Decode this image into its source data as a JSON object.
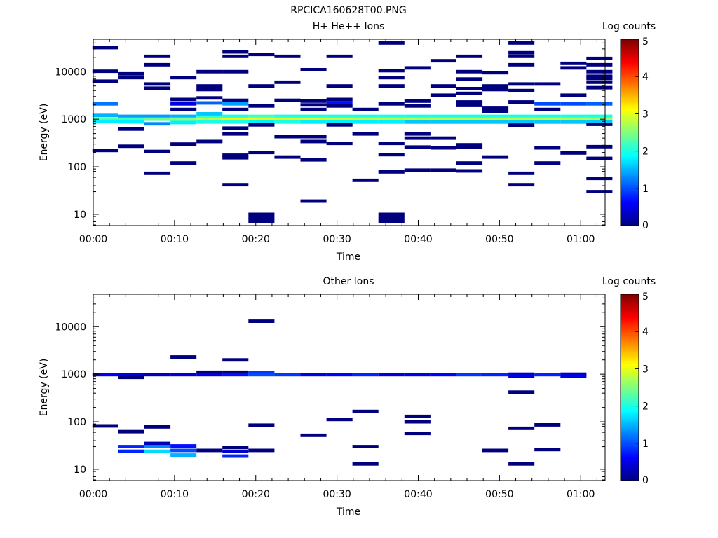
{
  "figure_title": "RPCICA160628T00.PNG",
  "colormap": [
    "#00007f",
    "#0000ff",
    "#007fff",
    "#00ffff",
    "#7fff7f",
    "#ffff00",
    "#ff7f00",
    "#ff0000",
    "#7f0000"
  ],
  "chart_data": [
    {
      "type": "heatmap",
      "title": "H+ He++ Ions",
      "xlabel": "Time",
      "ylabel": "Energy (eV)",
      "colorbar_label": "Log counts",
      "colorbar_ticks": [
        "0",
        "1",
        "2",
        "3",
        "4",
        "5"
      ],
      "x_ticks": [
        "00:00",
        "00:10",
        "00:20",
        "00:30",
        "00:40",
        "00:50",
        "01:00"
      ],
      "y_ticks": [
        "10",
        "100",
        "1000",
        "10000"
      ],
      "xlim_minutes": [
        0,
        63
      ],
      "ylim_ev": [
        5.8,
        48000
      ],
      "y_scale": "log",
      "col_width_minutes": 3.2,
      "bins": [
        [
          1.5,
          32000,
          0
        ],
        [
          1.5,
          10200,
          0
        ],
        [
          1.5,
          6300,
          0
        ],
        [
          1.5,
          2100,
          1.2
        ],
        [
          1.5,
          1200,
          1.5
        ],
        [
          1.5,
          1000,
          2.3
        ],
        [
          1.5,
          900,
          1.8
        ],
        [
          1.5,
          220,
          0
        ],
        [
          4.7,
          9000,
          0
        ],
        [
          4.7,
          7500,
          0
        ],
        [
          4.7,
          1150,
          1.4
        ],
        [
          4.7,
          1000,
          2.2
        ],
        [
          4.7,
          880,
          1.8
        ],
        [
          4.7,
          620,
          0
        ],
        [
          4.7,
          270,
          0
        ],
        [
          7.9,
          21000,
          0
        ],
        [
          7.9,
          14000,
          0
        ],
        [
          7.9,
          5500,
          0
        ],
        [
          7.9,
          4500,
          0
        ],
        [
          7.9,
          1150,
          1.4
        ],
        [
          7.9,
          1000,
          2.4
        ],
        [
          7.9,
          800,
          1.3
        ],
        [
          7.9,
          210,
          0
        ],
        [
          7.9,
          73,
          0
        ],
        [
          11.1,
          7500,
          0
        ],
        [
          11.1,
          2600,
          0
        ],
        [
          11.1,
          2100,
          0.5
        ],
        [
          11.1,
          1600,
          0
        ],
        [
          11.1,
          1150,
          1.5
        ],
        [
          11.1,
          1000,
          2.5
        ],
        [
          11.1,
          850,
          1.8
        ],
        [
          11.1,
          300,
          0
        ],
        [
          11.1,
          120,
          0
        ],
        [
          14.3,
          10000,
          0
        ],
        [
          14.3,
          5000,
          0
        ],
        [
          14.3,
          4200,
          0
        ],
        [
          14.3,
          2800,
          0
        ],
        [
          14.3,
          2200,
          1.1
        ],
        [
          14.3,
          1300,
          1.6
        ],
        [
          14.3,
          1100,
          2.1
        ],
        [
          14.3,
          1000,
          2.8
        ],
        [
          14.3,
          870,
          2.0
        ],
        [
          14.3,
          340,
          0
        ],
        [
          17.5,
          26000,
          0
        ],
        [
          17.5,
          21000,
          0
        ],
        [
          17.5,
          10000,
          0
        ],
        [
          17.5,
          2500,
          0
        ],
        [
          17.5,
          2100,
          1.4
        ],
        [
          17.5,
          1600,
          0
        ],
        [
          17.5,
          1150,
          2.0
        ],
        [
          17.5,
          1000,
          3.2
        ],
        [
          17.5,
          870,
          2.0
        ],
        [
          17.5,
          650,
          0
        ],
        [
          17.5,
          490,
          0
        ],
        [
          17.5,
          175,
          0
        ],
        [
          17.5,
          155,
          0
        ],
        [
          17.5,
          42,
          0
        ],
        [
          20.7,
          23000,
          0
        ],
        [
          20.7,
          5000,
          0
        ],
        [
          20.7,
          1900,
          0
        ],
        [
          20.7,
          1150,
          2.2
        ],
        [
          20.7,
          1000,
          3.0
        ],
        [
          20.7,
          870,
          1.8
        ],
        [
          20.7,
          760,
          0
        ],
        [
          20.7,
          200,
          0
        ],
        [
          20.7,
          8.5,
          0
        ],
        [
          23.9,
          21000,
          0
        ],
        [
          23.9,
          6000,
          0
        ],
        [
          23.9,
          2500,
          0
        ],
        [
          23.9,
          1150,
          2.0
        ],
        [
          23.9,
          1000,
          3.0
        ],
        [
          23.9,
          870,
          2.0
        ],
        [
          23.9,
          430,
          0
        ],
        [
          23.9,
          160,
          0
        ],
        [
          27.1,
          11000,
          0
        ],
        [
          27.1,
          2400,
          0
        ],
        [
          27.1,
          2000,
          0
        ],
        [
          27.1,
          1600,
          0
        ],
        [
          27.1,
          1150,
          2.0
        ],
        [
          27.1,
          1000,
          3.0
        ],
        [
          27.1,
          870,
          1.8
        ],
        [
          27.1,
          430,
          0
        ],
        [
          27.1,
          340,
          0
        ],
        [
          27.1,
          140,
          0
        ],
        [
          27.1,
          19,
          0
        ],
        [
          30.3,
          21000,
          0
        ],
        [
          30.3,
          5000,
          0
        ],
        [
          30.3,
          2600,
          0
        ],
        [
          30.3,
          2200,
          0.7
        ],
        [
          30.3,
          1900,
          0
        ],
        [
          30.3,
          1150,
          2.0
        ],
        [
          30.3,
          1000,
          2.9
        ],
        [
          30.3,
          870,
          1.8
        ],
        [
          30.3,
          760,
          0
        ],
        [
          30.3,
          310,
          0
        ],
        [
          33.5,
          1600,
          0
        ],
        [
          33.5,
          1150,
          2.0
        ],
        [
          33.5,
          1000,
          2.8
        ],
        [
          33.5,
          870,
          1.8
        ],
        [
          33.5,
          490,
          0
        ],
        [
          33.5,
          52,
          0
        ],
        [
          36.7,
          40000,
          0
        ],
        [
          36.7,
          10500,
          0
        ],
        [
          36.7,
          7500,
          0
        ],
        [
          36.7,
          5000,
          0
        ],
        [
          36.7,
          2100,
          0
        ],
        [
          36.7,
          1150,
          2.0
        ],
        [
          36.7,
          1000,
          2.8
        ],
        [
          36.7,
          870,
          1.8
        ],
        [
          36.7,
          310,
          0
        ],
        [
          36.7,
          180,
          0
        ],
        [
          36.7,
          78,
          0
        ],
        [
          36.7,
          8.5,
          0
        ],
        [
          39.9,
          12000,
          0
        ],
        [
          39.9,
          2400,
          0
        ],
        [
          39.9,
          1900,
          0
        ],
        [
          39.9,
          1150,
          2.0
        ],
        [
          39.9,
          1000,
          2.8
        ],
        [
          39.9,
          870,
          1.6
        ],
        [
          39.9,
          490,
          0
        ],
        [
          39.9,
          400,
          0
        ],
        [
          39.9,
          260,
          0
        ],
        [
          39.9,
          85,
          0
        ],
        [
          43.1,
          17000,
          0
        ],
        [
          43.1,
          5000,
          0
        ],
        [
          43.1,
          3200,
          0
        ],
        [
          43.1,
          1150,
          2.0
        ],
        [
          43.1,
          1000,
          2.8
        ],
        [
          43.1,
          870,
          1.6
        ],
        [
          43.1,
          400,
          0
        ],
        [
          43.1,
          250,
          0
        ],
        [
          43.1,
          85,
          0
        ],
        [
          46.3,
          21000,
          0
        ],
        [
          46.3,
          10000,
          0
        ],
        [
          46.3,
          7000,
          0
        ],
        [
          46.3,
          4400,
          0
        ],
        [
          46.3,
          3500,
          0
        ],
        [
          46.3,
          2300,
          0
        ],
        [
          46.3,
          1950,
          0
        ],
        [
          46.3,
          1150,
          2.0
        ],
        [
          46.3,
          1000,
          2.8
        ],
        [
          46.3,
          870,
          1.6
        ],
        [
          46.3,
          290,
          0
        ],
        [
          46.3,
          255,
          0
        ],
        [
          46.3,
          120,
          0
        ],
        [
          46.3,
          82,
          0
        ],
        [
          49.5,
          9500,
          0
        ],
        [
          49.5,
          5000,
          0
        ],
        [
          49.5,
          4200,
          0
        ],
        [
          49.5,
          1700,
          0
        ],
        [
          49.5,
          1450,
          0
        ],
        [
          49.5,
          1150,
          2.0
        ],
        [
          49.5,
          1000,
          2.8
        ],
        [
          49.5,
          870,
          1.6
        ],
        [
          49.5,
          160,
          0
        ],
        [
          52.7,
          40000,
          0
        ],
        [
          52.7,
          25000,
          0
        ],
        [
          52.7,
          21000,
          0
        ],
        [
          52.7,
          14000,
          0
        ],
        [
          52.7,
          5500,
          0
        ],
        [
          52.7,
          4000,
          0
        ],
        [
          52.7,
          2300,
          0
        ],
        [
          52.7,
          1150,
          2.0
        ],
        [
          52.7,
          1000,
          2.8
        ],
        [
          52.7,
          870,
          1.6
        ],
        [
          52.7,
          750,
          0
        ],
        [
          52.7,
          73,
          0
        ],
        [
          52.7,
          42,
          0
        ],
        [
          55.9,
          5500,
          0
        ],
        [
          55.9,
          2100,
          1.0
        ],
        [
          55.9,
          1600,
          0
        ],
        [
          55.9,
          1150,
          2.0
        ],
        [
          55.9,
          1000,
          2.8
        ],
        [
          55.9,
          870,
          1.6
        ],
        [
          55.9,
          250,
          0
        ],
        [
          55.9,
          120,
          0
        ],
        [
          59.1,
          15000,
          0
        ],
        [
          59.1,
          12000,
          0
        ],
        [
          59.1,
          3200,
          0
        ],
        [
          59.1,
          2100,
          1.0
        ],
        [
          59.1,
          1150,
          2.0
        ],
        [
          59.1,
          1000,
          2.8
        ],
        [
          59.1,
          870,
          1.6
        ],
        [
          59.1,
          195,
          0
        ],
        [
          62.3,
          19000,
          0
        ],
        [
          62.3,
          14000,
          0
        ],
        [
          62.3,
          10000,
          0
        ],
        [
          62.3,
          8000,
          0
        ],
        [
          62.3,
          7200,
          0
        ],
        [
          62.3,
          6000,
          0
        ],
        [
          62.3,
          4600,
          0
        ],
        [
          62.3,
          2100,
          1.1
        ],
        [
          62.3,
          1150,
          2.0
        ],
        [
          62.3,
          1000,
          2.7
        ],
        [
          62.3,
          870,
          1.6
        ],
        [
          62.3,
          780,
          0
        ],
        [
          62.3,
          265,
          0
        ],
        [
          62.3,
          150,
          0
        ],
        [
          62.3,
          57,
          0
        ],
        [
          62.3,
          30,
          0
        ]
      ]
    },
    {
      "type": "heatmap",
      "title": "Other Ions",
      "xlabel": "Time",
      "ylabel": "Energy (eV)",
      "colorbar_label": "Log counts",
      "colorbar_ticks": [
        "0",
        "1",
        "2",
        "3",
        "4",
        "5"
      ],
      "x_ticks": [
        "00:00",
        "00:10",
        "00:20",
        "00:30",
        "00:40",
        "00:50",
        "01:00"
      ],
      "y_ticks": [
        "10",
        "100",
        "1000",
        "10000"
      ],
      "xlim_minutes": [
        0,
        63
      ],
      "ylim_ev": [
        5.8,
        48000
      ],
      "y_scale": "log",
      "col_width_minutes": 3.2,
      "bins": [
        [
          1.5,
          980,
          0.6
        ],
        [
          1.5,
          82,
          0
        ],
        [
          4.7,
          980,
          0.5
        ],
        [
          4.7,
          860,
          0
        ],
        [
          4.7,
          62,
          0
        ],
        [
          4.7,
          30,
          0.8
        ],
        [
          4.7,
          24,
          0.8
        ],
        [
          7.9,
          980,
          0.3
        ],
        [
          7.9,
          78,
          0
        ],
        [
          7.9,
          35,
          0.3
        ],
        [
          7.9,
          30,
          1.3
        ],
        [
          7.9,
          24,
          1.7
        ],
        [
          11.1,
          2300,
          0
        ],
        [
          11.1,
          980,
          0.4
        ],
        [
          11.1,
          31,
          0.7
        ],
        [
          11.1,
          25,
          1.0
        ],
        [
          11.1,
          20,
          1.5
        ],
        [
          14.3,
          1100,
          0
        ],
        [
          14.3,
          980,
          0.5
        ],
        [
          14.3,
          25,
          0
        ],
        [
          17.5,
          2000,
          0
        ],
        [
          17.5,
          1100,
          0
        ],
        [
          17.5,
          980,
          0.7
        ],
        [
          17.5,
          29,
          0
        ],
        [
          17.5,
          24,
          0.4
        ],
        [
          17.5,
          19,
          0.8
        ],
        [
          20.7,
          13000,
          0
        ],
        [
          20.7,
          1080,
          0.9
        ],
        [
          20.7,
          980,
          1.0
        ],
        [
          20.7,
          85,
          0
        ],
        [
          20.7,
          25,
          0
        ],
        [
          23.9,
          980,
          0.9
        ],
        [
          27.1,
          980,
          0.5
        ],
        [
          27.1,
          52,
          0
        ],
        [
          30.3,
          980,
          0.6
        ],
        [
          30.3,
          112,
          0
        ],
        [
          33.5,
          980,
          0.8
        ],
        [
          33.5,
          165,
          0
        ],
        [
          33.5,
          30,
          0
        ],
        [
          33.5,
          13,
          0
        ],
        [
          36.7,
          980,
          0.4
        ],
        [
          39.9,
          980,
          0.5
        ],
        [
          39.9,
          130,
          0
        ],
        [
          39.9,
          100,
          0
        ],
        [
          39.9,
          57,
          0
        ],
        [
          43.1,
          980,
          0.6
        ],
        [
          46.3,
          980,
          0.9
        ],
        [
          49.5,
          980,
          0.8
        ],
        [
          49.5,
          25,
          0
        ],
        [
          52.7,
          1000,
          0.3
        ],
        [
          52.7,
          920,
          0.5
        ],
        [
          52.7,
          420,
          0
        ],
        [
          52.7,
          73,
          0
        ],
        [
          52.7,
          13,
          0
        ],
        [
          55.9,
          980,
          0.8
        ],
        [
          55.9,
          86,
          0
        ],
        [
          55.9,
          26,
          0
        ],
        [
          59.1,
          1000,
          0.3
        ],
        [
          59.1,
          920,
          0.5
        ]
      ]
    }
  ]
}
